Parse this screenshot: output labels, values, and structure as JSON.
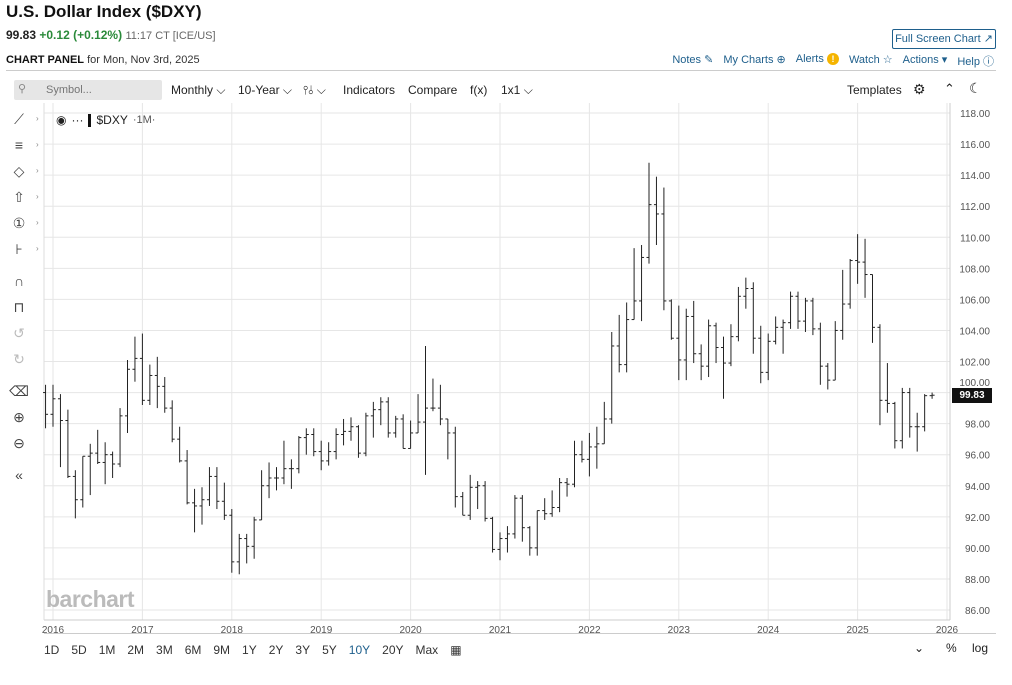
{
  "header": {
    "title": "U.S. Dollar Index ($DXY)",
    "last": "99.83",
    "change": "+0.12 (+0.12%)",
    "time": "11:17 CT [ICE/US]",
    "full_screen": "Full Screen Chart ↗"
  },
  "panel": {
    "label": "CHART PANEL",
    "date": "for Mon, Nov 3rd, 2025"
  },
  "links": {
    "notes": "Notes",
    "my_charts": "My Charts",
    "alerts": "Alerts",
    "watch": "Watch",
    "actions": "Actions",
    "help": "Help"
  },
  "toolbar": {
    "symbol_placeholder": "Symbol...",
    "interval": "Monthly",
    "period": "10-Year",
    "indicators": "Indicators",
    "compare": "Compare",
    "fx": "f(x)",
    "layout": "1x1",
    "templates": "Templates"
  },
  "legend": {
    "symbol": "$DXY",
    "interval": "·1M·"
  },
  "price_tag": "99.83",
  "logo": "barchart",
  "ranges": [
    "1D",
    "5D",
    "1M",
    "2M",
    "3M",
    "6M",
    "9M",
    "1Y",
    "2Y",
    "3Y",
    "5Y",
    "10Y",
    "20Y",
    "Max"
  ],
  "selected_range": "10Y",
  "bottom_right": {
    "percent": "%",
    "log": "log"
  },
  "chart_data": {
    "type": "ohlc",
    "title": "U.S. Dollar Index ($DXY) Monthly",
    "ylim": [
      86,
      118
    ],
    "yticks": [
      "86.00",
      "88.00",
      "90.00",
      "92.00",
      "94.00",
      "96.00",
      "98.00",
      "100.00",
      "102.00",
      "104.00",
      "106.00",
      "108.00",
      "110.00",
      "112.00",
      "114.00",
      "116.00",
      "118.00"
    ],
    "xticks": [
      "2016",
      "2017",
      "2018",
      "2019",
      "2020",
      "2021",
      "2022",
      "2023",
      "2024",
      "2025",
      "2026"
    ],
    "start_month": "2015-12",
    "bars": [
      [
        100.0,
        100.5,
        97.7,
        98.6
      ],
      [
        98.6,
        100.5,
        97.8,
        99.6
      ],
      [
        99.6,
        99.9,
        95.2,
        98.2
      ],
      [
        98.2,
        98.9,
        94.5,
        94.6
      ],
      [
        94.6,
        95.0,
        91.9,
        93.1
      ],
      [
        93.1,
        95.9,
        92.6,
        95.9
      ],
      [
        95.9,
        96.7,
        93.4,
        96.1
      ],
      [
        96.1,
        97.6,
        95.4,
        95.5
      ],
      [
        95.5,
        96.8,
        94.1,
        96.0
      ],
      [
        96.0,
        96.2,
        94.5,
        95.4
      ],
      [
        95.4,
        99.0,
        95.2,
        98.5
      ],
      [
        98.5,
        102.1,
        97.4,
        101.5
      ],
      [
        101.5,
        103.6,
        100.7,
        102.2
      ],
      [
        102.2,
        103.8,
        99.2,
        99.5
      ],
      [
        99.5,
        101.8,
        99.2,
        101.1
      ],
      [
        101.1,
        102.3,
        99.0,
        100.4
      ],
      [
        100.4,
        101.0,
        98.7,
        99.0
      ],
      [
        99.0,
        99.5,
        96.8,
        97.0
      ],
      [
        97.0,
        97.8,
        95.5,
        95.6
      ],
      [
        95.6,
        96.3,
        92.8,
        92.9
      ],
      [
        92.9,
        93.8,
        91.0,
        92.7
      ],
      [
        92.7,
        93.9,
        91.5,
        93.1
      ],
      [
        93.1,
        95.2,
        92.7,
        94.6
      ],
      [
        94.6,
        95.2,
        92.5,
        93.0
      ],
      [
        93.0,
        94.2,
        91.8,
        92.1
      ],
      [
        92.1,
        92.5,
        88.4,
        89.1
      ],
      [
        89.1,
        90.9,
        88.3,
        90.6
      ],
      [
        90.6,
        90.9,
        89.0,
        90.1
      ],
      [
        90.1,
        92.0,
        89.3,
        91.8
      ],
      [
        91.8,
        95.0,
        91.8,
        94.0
      ],
      [
        94.0,
        95.5,
        93.2,
        94.5
      ],
      [
        94.5,
        95.2,
        93.7,
        94.5
      ],
      [
        94.5,
        96.9,
        94.1,
        95.1
      ],
      [
        95.1,
        95.7,
        93.8,
        95.1
      ],
      [
        95.1,
        97.2,
        94.8,
        97.1
      ],
      [
        97.1,
        97.7,
        96.0,
        97.3
      ],
      [
        97.3,
        97.7,
        95.9,
        96.2
      ],
      [
        96.2,
        96.9,
        95.0,
        95.6
      ],
      [
        95.6,
        96.8,
        95.3,
        96.2
      ],
      [
        96.2,
        97.7,
        95.7,
        97.3
      ],
      [
        97.3,
        98.3,
        96.6,
        97.5
      ],
      [
        97.5,
        98.4,
        96.9,
        97.8
      ],
      [
        97.8,
        97.9,
        95.8,
        96.1
      ],
      [
        96.1,
        98.7,
        95.9,
        98.5
      ],
      [
        98.5,
        99.4,
        97.1,
        98.9
      ],
      [
        98.9,
        99.7,
        97.9,
        99.4
      ],
      [
        99.4,
        99.7,
        97.1,
        97.4
      ],
      [
        97.4,
        98.5,
        97.1,
        98.3
      ],
      [
        98.3,
        98.6,
        96.4,
        96.4
      ],
      [
        96.4,
        98.2,
        96.4,
        97.4
      ],
      [
        97.4,
        99.9,
        97.4,
        98.1
      ],
      [
        98.1,
        103.0,
        94.7,
        99.0
      ],
      [
        99.0,
        100.9,
        98.8,
        99.0
      ],
      [
        99.0,
        100.5,
        97.9,
        98.3
      ],
      [
        98.3,
        98.3,
        95.7,
        97.4
      ],
      [
        97.4,
        97.8,
        92.6,
        93.3
      ],
      [
        93.3,
        93.6,
        92.1,
        92.1
      ],
      [
        92.1,
        94.7,
        91.8,
        93.9
      ],
      [
        93.9,
        94.3,
        92.5,
        94.0
      ],
      [
        94.0,
        94.3,
        91.7,
        91.9
      ],
      [
        91.9,
        92.0,
        89.7,
        89.9
      ],
      [
        89.9,
        91.0,
        89.2,
        90.6
      ],
      [
        90.6,
        91.4,
        89.7,
        90.9
      ],
      [
        90.9,
        93.4,
        90.6,
        93.2
      ],
      [
        93.2,
        93.4,
        90.4,
        91.3
      ],
      [
        91.3,
        91.4,
        89.5,
        90.0
      ],
      [
        90.0,
        92.4,
        89.5,
        92.4
      ],
      [
        92.4,
        93.2,
        91.8,
        92.2
      ],
      [
        92.2,
        93.7,
        92.0,
        92.6
      ],
      [
        92.6,
        94.5,
        92.3,
        94.2
      ],
      [
        94.2,
        94.5,
        93.3,
        94.1
      ],
      [
        94.1,
        96.9,
        93.9,
        96.0
      ],
      [
        96.0,
        96.9,
        95.5,
        95.7
      ],
      [
        95.7,
        97.4,
        94.6,
        96.5
      ],
      [
        96.5,
        97.8,
        95.1,
        96.7
      ],
      [
        96.7,
        99.4,
        96.7,
        98.3
      ],
      [
        98.3,
        103.9,
        98.0,
        103.0
      ],
      [
        103.0,
        105.0,
        101.3,
        101.8
      ],
      [
        101.8,
        105.8,
        101.3,
        104.7
      ],
      [
        104.7,
        109.3,
        104.7,
        105.9
      ],
      [
        105.9,
        109.5,
        104.6,
        108.7
      ],
      [
        108.7,
        114.8,
        108.3,
        112.1
      ],
      [
        112.1,
        113.9,
        109.5,
        111.5
      ],
      [
        111.5,
        113.2,
        105.3,
        105.9
      ],
      [
        105.9,
        106.0,
        103.4,
        103.5
      ],
      [
        103.5,
        105.6,
        100.8,
        102.1
      ],
      [
        102.1,
        105.4,
        100.8,
        104.9
      ],
      [
        104.9,
        105.9,
        101.9,
        102.5
      ],
      [
        102.5,
        103.1,
        100.8,
        101.7
      ],
      [
        101.7,
        104.7,
        101.0,
        104.3
      ],
      [
        104.3,
        104.5,
        101.9,
        102.9
      ],
      [
        102.9,
        103.6,
        99.6,
        101.9
      ],
      [
        101.9,
        104.4,
        101.7,
        103.6
      ],
      [
        103.6,
        106.8,
        103.3,
        106.2
      ],
      [
        106.2,
        107.4,
        105.4,
        106.7
      ],
      [
        106.7,
        107.1,
        102.5,
        103.5
      ],
      [
        103.5,
        104.3,
        100.6,
        101.3
      ],
      [
        101.3,
        103.8,
        100.8,
        103.3
      ],
      [
        103.3,
        104.9,
        103.1,
        104.2
      ],
      [
        104.2,
        104.7,
        102.5,
        104.5
      ],
      [
        104.5,
        106.5,
        104.1,
        106.2
      ],
      [
        106.2,
        106.5,
        104.1,
        104.6
      ],
      [
        104.6,
        106.1,
        103.9,
        105.9
      ],
      [
        105.9,
        106.1,
        103.7,
        104.1
      ],
      [
        104.1,
        104.5,
        100.5,
        101.7
      ],
      [
        101.7,
        101.9,
        100.2,
        100.8
      ],
      [
        100.8,
        104.6,
        100.8,
        104.0
      ],
      [
        104.0,
        107.9,
        103.4,
        105.7
      ],
      [
        105.7,
        108.6,
        105.4,
        108.5
      ],
      [
        108.5,
        110.2,
        107.0,
        108.4
      ],
      [
        108.4,
        109.9,
        106.1,
        107.6
      ],
      [
        107.6,
        107.6,
        103.2,
        104.2
      ],
      [
        104.2,
        104.4,
        97.9,
        99.5
      ],
      [
        99.5,
        101.9,
        98.7,
        99.3
      ],
      [
        99.3,
        99.4,
        96.4,
        96.9
      ],
      [
        96.9,
        100.3,
        96.4,
        100.0
      ],
      [
        100.0,
        100.3,
        97.1,
        97.8
      ],
      [
        97.8,
        98.7,
        96.2,
        97.8
      ],
      [
        97.8,
        99.9,
        97.5,
        99.8
      ],
      [
        99.8,
        100.0,
        99.6,
        99.83
      ]
    ]
  }
}
